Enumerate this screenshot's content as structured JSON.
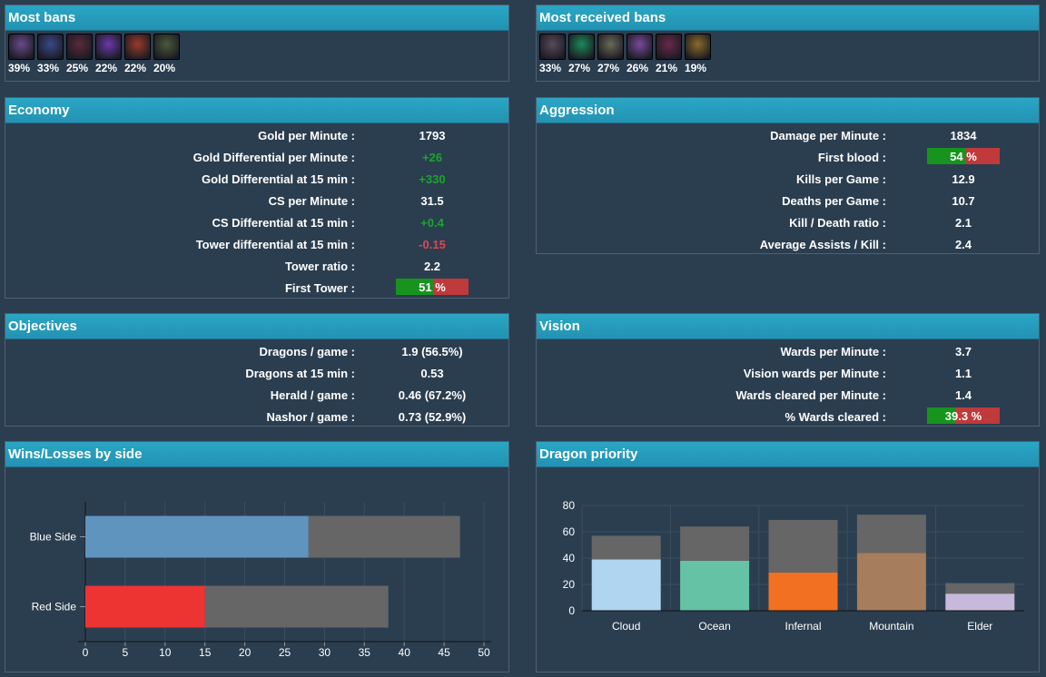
{
  "most_bans": {
    "title": "Most bans",
    "items": [
      {
        "pct": "39%",
        "icon": "champion-portrait-1",
        "color": "#6a4a8a"
      },
      {
        "pct": "33%",
        "icon": "champion-portrait-2",
        "color": "#3a4a8a"
      },
      {
        "pct": "25%",
        "icon": "champion-portrait-3",
        "color": "#5a2a3a"
      },
      {
        "pct": "22%",
        "icon": "champion-portrait-4",
        "color": "#6a3aaa"
      },
      {
        "pct": "22%",
        "icon": "champion-portrait-5",
        "color": "#9a3a2a"
      },
      {
        "pct": "20%",
        "icon": "champion-portrait-6",
        "color": "#4a5a3a"
      }
    ]
  },
  "most_received_bans": {
    "title": "Most received bans",
    "items": [
      {
        "pct": "33%",
        "icon": "champion-portrait-7",
        "color": "#5a4a5a"
      },
      {
        "pct": "27%",
        "icon": "champion-portrait-8",
        "color": "#1a8a5a"
      },
      {
        "pct": "27%",
        "icon": "champion-portrait-9",
        "color": "#6a6a5a"
      },
      {
        "pct": "26%",
        "icon": "champion-portrait-10",
        "color": "#7a4a9a"
      },
      {
        "pct": "21%",
        "icon": "champion-portrait-11",
        "color": "#6a2a4a"
      },
      {
        "pct": "19%",
        "icon": "champion-portrait-12",
        "color": "#8a6a2a"
      }
    ]
  },
  "economy": {
    "title": "Economy",
    "rows": [
      {
        "label": "Gold per Minute :",
        "value": "1793"
      },
      {
        "label": "Gold Differential per Minute :",
        "value": "+26"
      },
      {
        "label": "Gold Differential at 15 min :",
        "value": "+330"
      },
      {
        "label": "CS per Minute :",
        "value": "31.5"
      },
      {
        "label": "CS Differential at 15 min :",
        "value": "+0.4"
      },
      {
        "label": "Tower differential at 15 min :",
        "value": "-0.15"
      },
      {
        "label": "Tower ratio :",
        "value": "2.2"
      },
      {
        "label": "First Tower :",
        "value": "51 %",
        "ratio": 0.51
      }
    ]
  },
  "aggression": {
    "title": "Aggression",
    "rows": [
      {
        "label": "Damage per Minute :",
        "value": "1834"
      },
      {
        "label": "First blood :",
        "value": "54 %",
        "ratio": 0.54
      },
      {
        "label": "Kills per Game :",
        "value": "12.9"
      },
      {
        "label": "Deaths per Game :",
        "value": "10.7"
      },
      {
        "label": "Kill / Death ratio :",
        "value": "2.1"
      },
      {
        "label": "Average Assists / Kill :",
        "value": "2.4"
      }
    ]
  },
  "objectives": {
    "title": "Objectives",
    "rows": [
      {
        "label": "Dragons / game :",
        "value": "1.9 (56.5%)"
      },
      {
        "label": "Dragons at 15 min :",
        "value": "0.53"
      },
      {
        "label": "Herald / game :",
        "value": "0.46 (67.2%)"
      },
      {
        "label": "Nashor / game :",
        "value": "0.73 (52.9%)"
      }
    ]
  },
  "vision": {
    "title": "Vision",
    "rows": [
      {
        "label": "Wards per Minute :",
        "value": "3.7"
      },
      {
        "label": "Vision wards per Minute :",
        "value": "1.1"
      },
      {
        "label": "Wards cleared per Minute :",
        "value": "1.4"
      },
      {
        "label": "% Wards cleared :",
        "value": "39.3 %",
        "ratio": 0.393
      }
    ]
  },
  "colors": {
    "positive": "#19a62a",
    "negative": "#d9484e",
    "header": "#2aa6c6",
    "background": "#2b3e50",
    "loss_bar": "#666666"
  },
  "wins_losses": {
    "title": "Wins/Losses by side"
  },
  "dragon_priority": {
    "title": "Dragon priority"
  },
  "chart_data": [
    {
      "type": "bar",
      "orientation": "horizontal",
      "stacked": true,
      "categories": [
        "Blue Side",
        "Red Side"
      ],
      "series": [
        {
          "values": [
            28,
            15
          ]
        },
        {
          "values": [
            19,
            23
          ]
        }
      ],
      "category_colors": [
        "#5f94be",
        "#ee3333"
      ],
      "secondary_color": "#666666",
      "xlim": [
        0,
        50
      ],
      "xticks": [
        0,
        5,
        10,
        15,
        20,
        25,
        30,
        35,
        40,
        45,
        50
      ],
      "grid": true
    },
    {
      "type": "bar",
      "stacked": true,
      "categories": [
        "Cloud",
        "Ocean",
        "Infernal",
        "Mountain",
        "Elder"
      ],
      "series": [
        {
          "values": [
            39,
            38,
            29,
            44,
            13
          ]
        },
        {
          "values": [
            18,
            26,
            40,
            29,
            8
          ]
        }
      ],
      "category_colors": [
        "#afd5f0",
        "#66c2a5",
        "#f27022",
        "#a67d5d",
        "#c7b9db"
      ],
      "secondary_color": "#666666",
      "ylim": [
        0,
        80
      ],
      "yticks": [
        0,
        20,
        40,
        60,
        80
      ],
      "grid": true
    }
  ]
}
